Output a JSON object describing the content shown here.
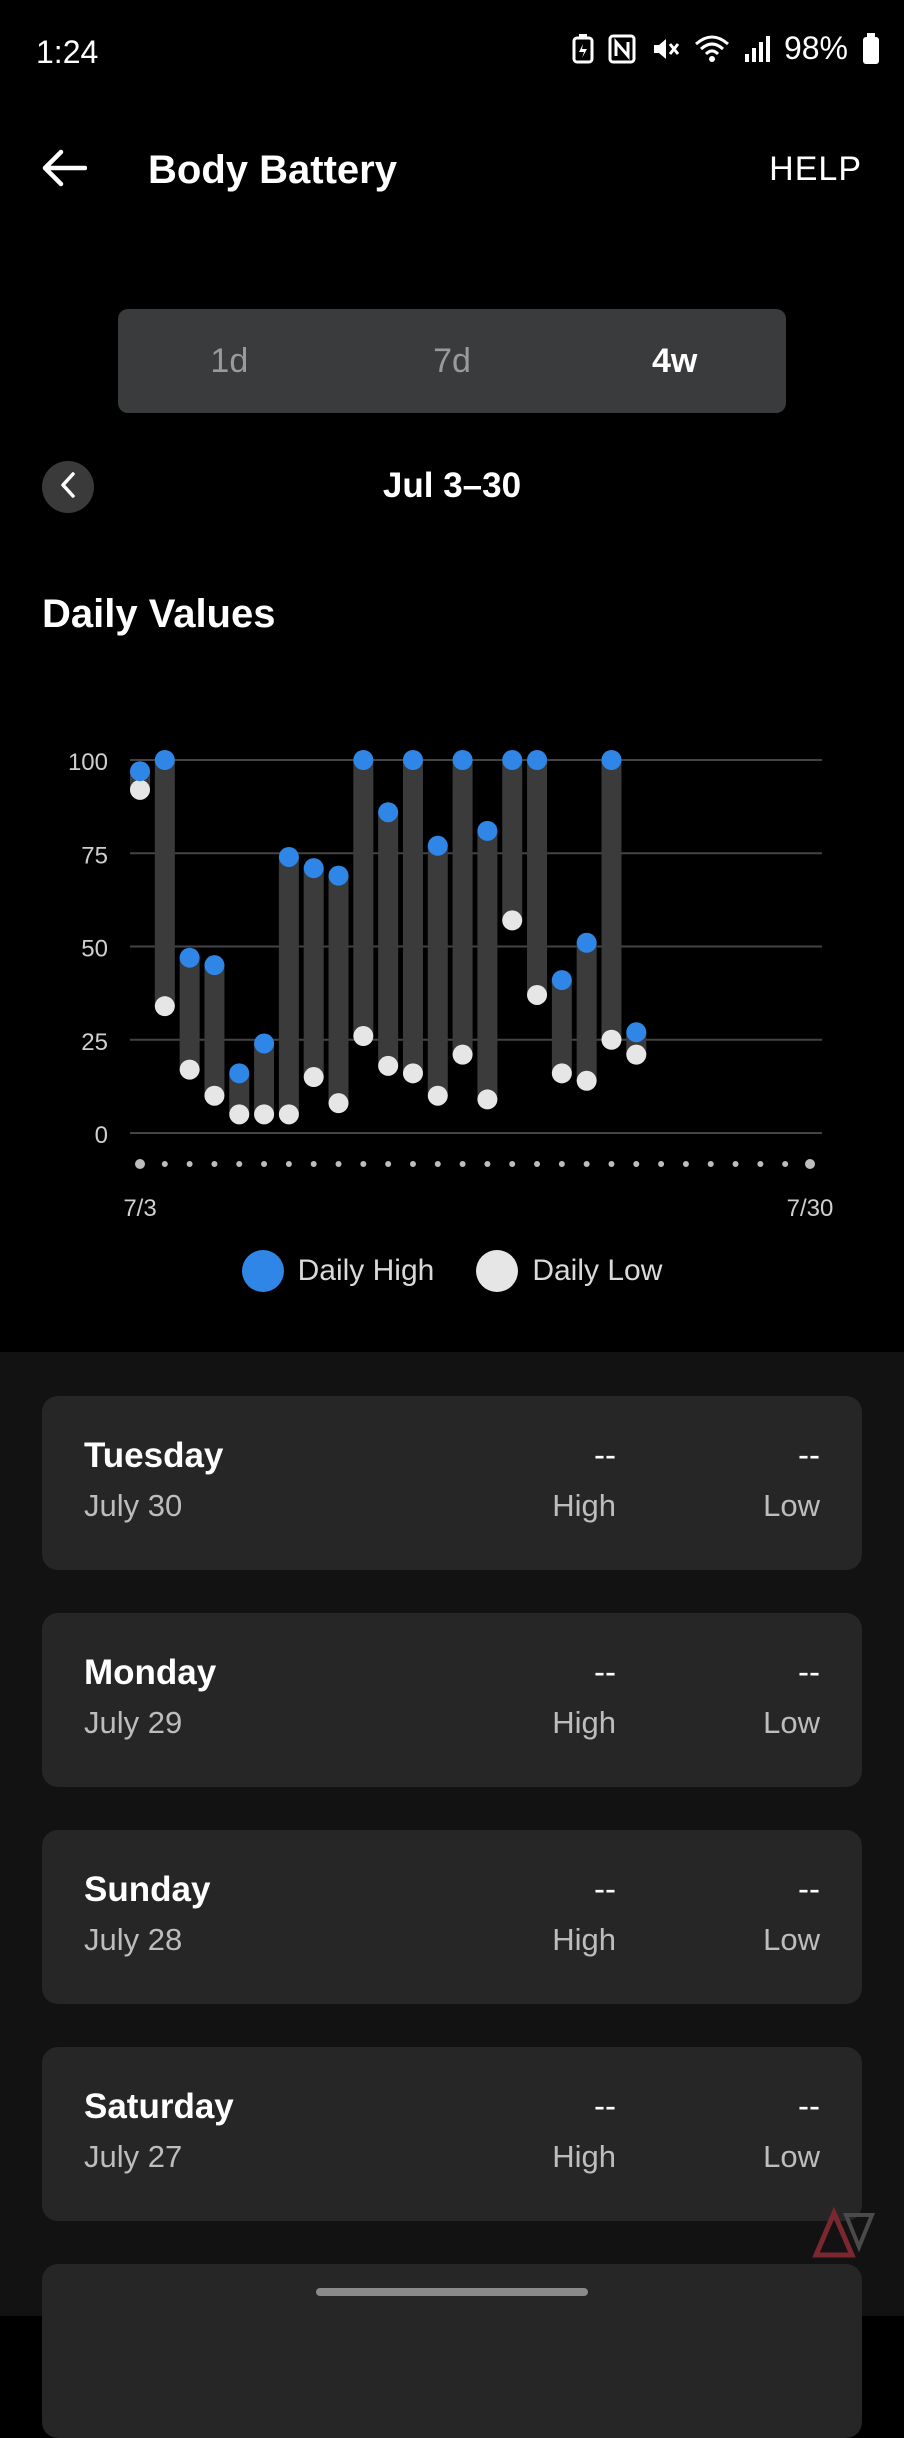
{
  "status_bar": {
    "time": "1:24",
    "battery_pct": "98%",
    "icons": [
      "battery-saver-icon",
      "nfc-icon",
      "mute-icon",
      "wifi-icon",
      "signal-icon",
      "battery-icon"
    ]
  },
  "header": {
    "title": "Body Battery",
    "help": "HELP"
  },
  "range_tabs": [
    {
      "label": "1d",
      "active": false
    },
    {
      "label": "7d",
      "active": false
    },
    {
      "label": "4w",
      "active": true
    }
  ],
  "date_range": "Jul 3–30",
  "section_title": "Daily Values",
  "colors": {
    "high": "#2f86e6",
    "low": "#e6e6e6",
    "bar": "#3b3b3b",
    "grid": "#444444",
    "card": "#262626"
  },
  "chart_data": {
    "type": "range",
    "ylim": [
      0,
      100
    ],
    "yticks": [
      0,
      25,
      50,
      75,
      100
    ],
    "x_tick_labels": [
      {
        "index": 0,
        "label": "7/3"
      },
      {
        "index": 27,
        "label": "7/30"
      }
    ],
    "days": 28,
    "series": [
      {
        "name": "Daily High",
        "values": [
          97,
          100,
          47,
          45,
          16,
          24,
          74,
          71,
          69,
          100,
          86,
          100,
          77,
          100,
          81,
          100,
          100,
          41,
          51,
          100,
          27,
          null,
          null,
          null,
          null,
          null,
          null,
          null
        ]
      },
      {
        "name": "Daily Low",
        "values": [
          92,
          34,
          17,
          10,
          5,
          5,
          5,
          15,
          8,
          26,
          18,
          16,
          10,
          21,
          9,
          57,
          37,
          16,
          14,
          25,
          21,
          null,
          null,
          null,
          null,
          null,
          null,
          null
        ]
      }
    ]
  },
  "legend": {
    "high": "Daily High",
    "low": "Daily Low"
  },
  "days_list": [
    {
      "day": "Tuesday",
      "date": "July 30",
      "high": "--",
      "low": "--",
      "high_label": "High",
      "low_label": "Low"
    },
    {
      "day": "Monday",
      "date": "July 29",
      "high": "--",
      "low": "--",
      "high_label": "High",
      "low_label": "Low"
    },
    {
      "day": "Sunday",
      "date": "July 28",
      "high": "--",
      "low": "--",
      "high_label": "High",
      "low_label": "Low"
    },
    {
      "day": "Saturday",
      "date": "July 27",
      "high": "--",
      "low": "--",
      "high_label": "High",
      "low_label": "Low"
    }
  ]
}
